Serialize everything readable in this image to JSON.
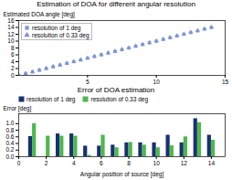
{
  "chart_data": [
    {
      "type": "scatter",
      "title": "Estimation of DOA for different angular resolution",
      "ylabel": "Estimated DOA angle [deg]",
      "x": [
        0,
        0.5,
        1.0,
        1.5,
        2.0,
        2.5,
        3.0,
        3.5,
        4.0,
        4.5,
        5.0,
        5.5,
        6.0,
        6.5,
        7.0,
        7.5,
        8.0,
        8.5,
        9.0,
        9.5,
        10.0,
        10.5,
        11.0,
        11.5,
        12.0,
        12.5,
        13.0,
        13.5,
        14.0
      ],
      "series": [
        {
          "name": "resolution of 1 deg",
          "color": "#7b96d4",
          "marker": "square",
          "values": [
            0.0,
            0.5,
            1.0,
            1.5,
            2.0,
            2.5,
            3.0,
            3.5,
            4.0,
            4.5,
            5.0,
            5.5,
            6.0,
            6.5,
            7.0,
            7.5,
            8.0,
            8.5,
            9.0,
            9.5,
            10.0,
            10.5,
            11.0,
            11.5,
            12.0,
            12.5,
            13.0,
            13.5,
            14.0
          ]
        },
        {
          "name": "resolution of 0.33 deg",
          "color": "#7b96d4",
          "marker": "triangle",
          "values": [
            0.05,
            0.55,
            1.05,
            1.55,
            2.05,
            2.55,
            3.05,
            3.55,
            4.05,
            4.55,
            5.05,
            5.55,
            6.05,
            6.55,
            7.05,
            7.55,
            8.05,
            8.55,
            9.05,
            9.55,
            10.05,
            10.55,
            11.05,
            11.55,
            12.05,
            12.55,
            13.05,
            13.55,
            14.05
          ]
        }
      ],
      "xlim": [
        0,
        15
      ],
      "ylim": [
        0,
        16
      ],
      "xticks": [
        5,
        10,
        15
      ],
      "yticks": [
        0,
        2,
        4,
        6,
        8,
        10,
        12,
        14,
        16
      ],
      "grid": false,
      "legend": "upper left"
    },
    {
      "type": "bar",
      "title": "Error of DOA estimation",
      "xlabel": "Angular position of source [deg]",
      "ylabel": "Error [deg]",
      "x": [
        1,
        2,
        3,
        4,
        5,
        6,
        7,
        8,
        9,
        10,
        11,
        12,
        13,
        14
      ],
      "series": [
        {
          "name": "resolution of 1 deg",
          "color": "#1a3170",
          "values": [
            0.61,
            0.0,
            0.69,
            0.69,
            0.32,
            0.32,
            0.35,
            0.42,
            0.42,
            0.42,
            0.65,
            0.42,
            1.15,
            0.65
          ]
        },
        {
          "name": "resolution of 0.33 deg",
          "color": "#4db84d",
          "values": [
            1.0,
            0.62,
            0.62,
            0.62,
            0.04,
            0.65,
            0.27,
            0.43,
            0.35,
            0.27,
            0.33,
            0.6,
            1.03,
            0.5
          ]
        }
      ],
      "xlim": [
        0,
        15
      ],
      "ylim": [
        0,
        1.3
      ],
      "xticks": [
        0,
        2,
        4,
        6,
        8,
        10,
        12,
        14
      ],
      "yticks": [
        {
          "value": 0,
          "label": "0.0"
        },
        0.2,
        0.4,
        0.6,
        0.8,
        {
          "value": 1,
          "label": "1.0"
        }
      ],
      "grid": false,
      "legend": "upper left"
    }
  ]
}
